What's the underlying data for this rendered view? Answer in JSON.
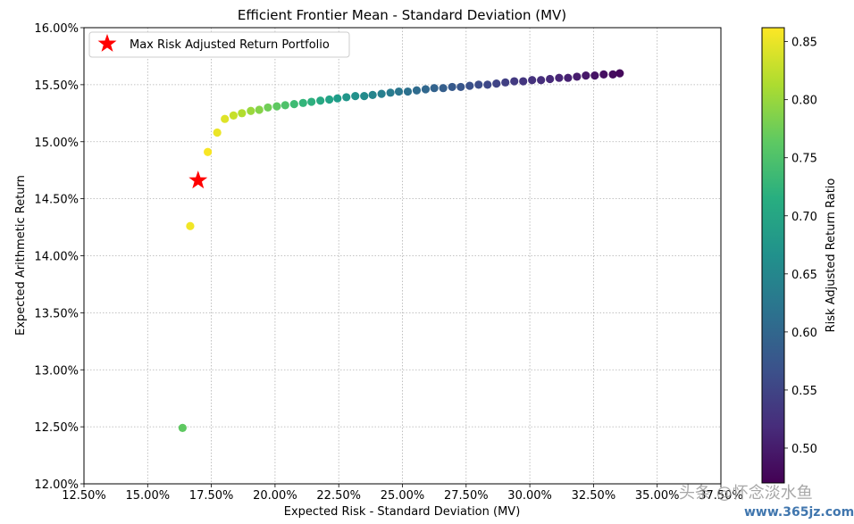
{
  "chart_data": {
    "type": "scatter",
    "title": "Efficient Frontier Mean - Standard Deviation (MV)",
    "xlabel": "Expected Risk - Standard Deviation (MV)",
    "ylabel": "Expected Arithmetic Return",
    "xlim": [
      0.125,
      0.375
    ],
    "ylim": [
      0.12,
      0.16
    ],
    "x_ticks": [
      0.125,
      0.15,
      0.175,
      0.2,
      0.225,
      0.25,
      0.275,
      0.3,
      0.325,
      0.35,
      0.375
    ],
    "x_tick_labels": [
      "12.50%",
      "15.00%",
      "17.50%",
      "20.00%",
      "22.50%",
      "25.00%",
      "27.50%",
      "30.00%",
      "32.50%",
      "35.00%",
      "37.50%"
    ],
    "y_ticks": [
      0.12,
      0.125,
      0.13,
      0.135,
      0.14,
      0.145,
      0.15,
      0.155,
      0.16
    ],
    "y_tick_labels": [
      "12.00%",
      "12.50%",
      "13.00%",
      "13.50%",
      "14.00%",
      "14.50%",
      "15.00%",
      "15.50%",
      "16.00%"
    ],
    "grid": true,
    "legend_position": "top-left",
    "legend_label": "Max Risk Adjusted Return Portfolio",
    "colormap": "viridis",
    "colorbar": {
      "label": "Risk Adjusted Return Ratio",
      "range": [
        0.47,
        0.862
      ],
      "ticks": [
        0.5,
        0.55,
        0.6,
        0.65,
        0.7,
        0.75,
        0.8,
        0.85
      ],
      "tick_labels": [
        "0.50",
        "0.55",
        "0.60",
        "0.65",
        "0.70",
        "0.75",
        "0.80",
        "0.85"
      ]
    },
    "max_portfolio": {
      "x": 0.1698,
      "y": 0.1466,
      "color": "#ff0000"
    },
    "points": [
      {
        "x": 0.1637,
        "y": 0.1249,
        "c": 0.763
      },
      {
        "x": 0.1667,
        "y": 0.1426,
        "c": 0.855
      },
      {
        "x": 0.1736,
        "y": 0.1491,
        "c": 0.859
      },
      {
        "x": 0.1773,
        "y": 0.1508,
        "c": 0.851
      },
      {
        "x": 0.1803,
        "y": 0.152,
        "c": 0.843
      },
      {
        "x": 0.1837,
        "y": 0.1523,
        "c": 0.829
      },
      {
        "x": 0.187,
        "y": 0.1525,
        "c": 0.816
      },
      {
        "x": 0.1905,
        "y": 0.1527,
        "c": 0.802
      },
      {
        "x": 0.1938,
        "y": 0.1528,
        "c": 0.789
      },
      {
        "x": 0.1972,
        "y": 0.153,
        "c": 0.776
      },
      {
        "x": 0.2007,
        "y": 0.1531,
        "c": 0.763
      },
      {
        "x": 0.204,
        "y": 0.1532,
        "c": 0.751
      },
      {
        "x": 0.2075,
        "y": 0.1533,
        "c": 0.739
      },
      {
        "x": 0.211,
        "y": 0.1534,
        "c": 0.728
      },
      {
        "x": 0.2143,
        "y": 0.1535,
        "c": 0.717
      },
      {
        "x": 0.2178,
        "y": 0.1536,
        "c": 0.706
      },
      {
        "x": 0.2213,
        "y": 0.1537,
        "c": 0.696
      },
      {
        "x": 0.2245,
        "y": 0.1538,
        "c": 0.686
      },
      {
        "x": 0.228,
        "y": 0.1539,
        "c": 0.676
      },
      {
        "x": 0.2315,
        "y": 0.154,
        "c": 0.667
      },
      {
        "x": 0.235,
        "y": 0.154,
        "c": 0.658
      },
      {
        "x": 0.2383,
        "y": 0.1541,
        "c": 0.649
      },
      {
        "x": 0.2418,
        "y": 0.1542,
        "c": 0.64
      },
      {
        "x": 0.2453,
        "y": 0.1543,
        "c": 0.632
      },
      {
        "x": 0.2486,
        "y": 0.1544,
        "c": 0.624
      },
      {
        "x": 0.2521,
        "y": 0.1544,
        "c": 0.616
      },
      {
        "x": 0.2556,
        "y": 0.1545,
        "c": 0.608
      },
      {
        "x": 0.2591,
        "y": 0.1546,
        "c": 0.601
      },
      {
        "x": 0.2625,
        "y": 0.1547,
        "c": 0.594
      },
      {
        "x": 0.266,
        "y": 0.1547,
        "c": 0.587
      },
      {
        "x": 0.2695,
        "y": 0.1548,
        "c": 0.58
      },
      {
        "x": 0.2729,
        "y": 0.1548,
        "c": 0.574
      },
      {
        "x": 0.2764,
        "y": 0.1549,
        "c": 0.567
      },
      {
        "x": 0.2799,
        "y": 0.155,
        "c": 0.561
      },
      {
        "x": 0.2834,
        "y": 0.155,
        "c": 0.555
      },
      {
        "x": 0.2869,
        "y": 0.1551,
        "c": 0.549
      },
      {
        "x": 0.2904,
        "y": 0.1552,
        "c": 0.543
      },
      {
        "x": 0.2939,
        "y": 0.1553,
        "c": 0.537
      },
      {
        "x": 0.2974,
        "y": 0.1553,
        "c": 0.532
      },
      {
        "x": 0.3009,
        "y": 0.1554,
        "c": 0.526
      },
      {
        "x": 0.3044,
        "y": 0.1554,
        "c": 0.521
      },
      {
        "x": 0.3079,
        "y": 0.1555,
        "c": 0.516
      },
      {
        "x": 0.3115,
        "y": 0.1556,
        "c": 0.511
      },
      {
        "x": 0.315,
        "y": 0.1556,
        "c": 0.506
      },
      {
        "x": 0.3185,
        "y": 0.1557,
        "c": 0.501
      },
      {
        "x": 0.322,
        "y": 0.1558,
        "c": 0.496
      },
      {
        "x": 0.3255,
        "y": 0.1558,
        "c": 0.491
      },
      {
        "x": 0.329,
        "y": 0.1559,
        "c": 0.487
      },
      {
        "x": 0.3326,
        "y": 0.1559,
        "c": 0.482
      },
      {
        "x": 0.3353,
        "y": 0.156,
        "c": 0.478
      }
    ]
  },
  "watermark": {
    "text": "头条 @怀念淡水鱼",
    "url": "www.365jz.com"
  }
}
